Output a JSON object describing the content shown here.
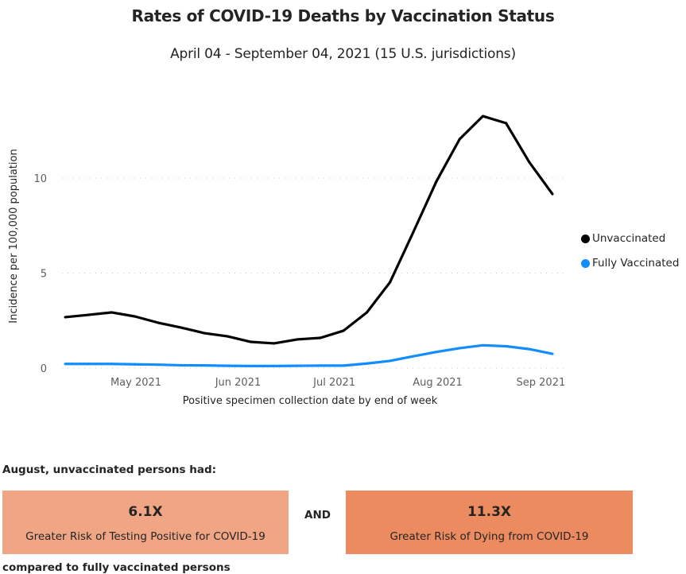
{
  "header": {
    "title": "Rates of COVID-19 Deaths by Vaccination Status",
    "subtitle": "April 04 - September 04, 2021 (15 U.S. jurisdictions)"
  },
  "chart_data": {
    "type": "line",
    "title": "Rates of COVID-19 Deaths by Vaccination Status",
    "subtitle": "April 04 - September 04, 2021 (15 U.S. jurisdictions)",
    "xlabel": "Positive specimen collection date by end of week",
    "ylabel": "Incidence per 100,000 population",
    "ylim": [
      0,
      13.5
    ],
    "yticks": [
      0,
      5,
      10
    ],
    "grid": true,
    "legend_position": "right",
    "x_week_count": 22,
    "x_tick_labels": [
      {
        "label": "May 2021",
        "week_index": 3.05
      },
      {
        "label": "Jun 2021",
        "week_index": 7.45
      },
      {
        "label": "Jul 2021",
        "week_index": 11.6
      },
      {
        "label": "Aug 2021",
        "week_index": 16.05
      },
      {
        "label": "Sep 2021",
        "week_index": 20.5
      }
    ],
    "series": [
      {
        "name": "Unvaccinated",
        "color": "#000000",
        "values": [
          2.68,
          2.8,
          2.93,
          2.72,
          2.39,
          2.13,
          1.84,
          1.67,
          1.38,
          1.3,
          1.51,
          1.59,
          1.97,
          2.93,
          4.52,
          7.15,
          9.83,
          12.05,
          13.26,
          12.89,
          10.84,
          9.16
        ]
      },
      {
        "name": "Fully Vaccinated",
        "color": "#118DFF",
        "values": [
          0.22,
          0.22,
          0.22,
          0.2,
          0.18,
          0.15,
          0.14,
          0.12,
          0.11,
          0.11,
          0.12,
          0.13,
          0.13,
          0.24,
          0.38,
          0.62,
          0.85,
          1.05,
          1.2,
          1.15,
          1.0,
          0.75
        ]
      }
    ]
  },
  "summary": {
    "intro": "August, unvaccinated persons had:",
    "boxes": [
      {
        "value": "6.1X",
        "label": "Greater Risk of Testing Positive for COVID-19",
        "color": "#F0A585"
      },
      {
        "value": "11.3X",
        "label": "Greater Risk of Dying from COVID-19",
        "color": "#EC8B60"
      }
    ],
    "connector": "AND",
    "outro": "compared to fully vaccinated persons"
  }
}
